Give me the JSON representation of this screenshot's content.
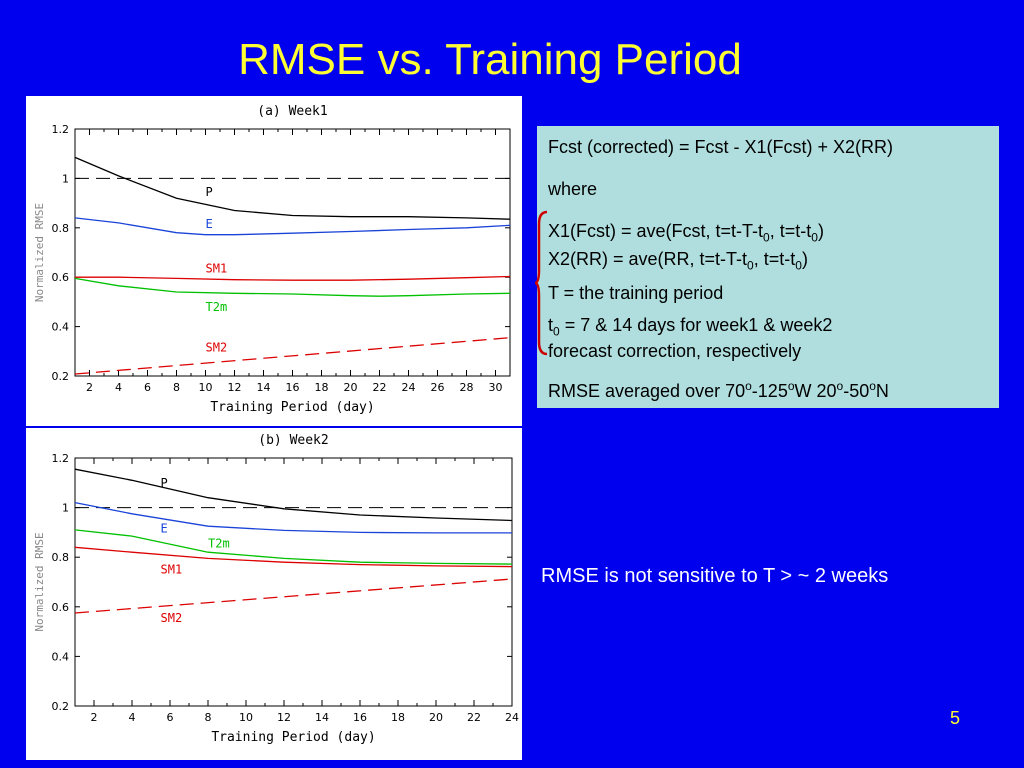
{
  "slide": {
    "title": "RMSE vs. Training Period",
    "page_number": "5",
    "note": "RMSE is not sensitive to T > ~ 2 weeks"
  },
  "infobox": {
    "line1": "Fcst (corrected) = Fcst - X1(Fcst) + X2(RR)",
    "line2": "where",
    "x1_a": "X1(Fcst) = ave(Fcst, t=t-T-t",
    "x1_sub1": "0",
    "x1_b": ", t=t-t",
    "x1_sub2": "0",
    "x1_c": ")",
    "x2_a": "X2(RR) = ave(RR, t=t-T-t",
    "x2_sub1": "0",
    "x2_b": ", t=t-t",
    "x2_sub2": "0",
    "x2_c": ")",
    "t_def": "T = the training period",
    "t0_a": "t",
    "t0_sub": "0",
    "t0_b": " = 7 & 14 days for week1 & week2",
    "t0_line2": "forecast correction, respectively",
    "rmse_a": "RMSE averaged over 70",
    "rmse_sup1": "o",
    "rmse_b": "-125",
    "rmse_sup2": "o",
    "rmse_c": "W 20",
    "rmse_sup3": "o",
    "rmse_d": "-50",
    "rmse_sup4": "o",
    "rmse_e": "N"
  },
  "colors": {
    "background": "#0000ee",
    "title": "#ffff33",
    "infobox_bg": "#b0dede",
    "P": "#000000",
    "E": "#1a44d8",
    "SM1": "#dd0000",
    "T2m": "#00c000",
    "SM2": "#dd0000"
  },
  "chart_data": [
    {
      "type": "line",
      "title": "(a) Week1",
      "xlabel": "Training Period (day)",
      "ylabel": "Normalized RMSE",
      "xlim": [
        1,
        31
      ],
      "ylim": [
        0.2,
        1.2
      ],
      "xticks": [
        2,
        4,
        6,
        8,
        10,
        12,
        14,
        16,
        18,
        20,
        22,
        24,
        26,
        28,
        30
      ],
      "yticks": [
        0.2,
        0.4,
        0.6,
        0.8,
        1.0,
        1.2
      ],
      "ytick_labels": [
        "0.2",
        "0.4",
        "0.6",
        "0.8",
        "1",
        "1.2"
      ],
      "reference_line": 1.0,
      "series": [
        {
          "name": "P",
          "color_key": "P",
          "dashed": false,
          "x": [
            1,
            4,
            8,
            12,
            16,
            20,
            24,
            28,
            31
          ],
          "y": [
            1.085,
            1.01,
            0.92,
            0.87,
            0.85,
            0.845,
            0.845,
            0.84,
            0.835
          ]
        },
        {
          "name": "E",
          "color_key": "E",
          "dashed": false,
          "x": [
            1,
            4,
            8,
            10,
            12,
            16,
            20,
            24,
            28,
            31
          ],
          "y": [
            0.84,
            0.82,
            0.78,
            0.772,
            0.772,
            0.778,
            0.785,
            0.793,
            0.8,
            0.81
          ]
        },
        {
          "name": "SM1",
          "color_key": "SM1",
          "dashed": false,
          "x": [
            1,
            4,
            8,
            12,
            16,
            20,
            24,
            28,
            31
          ],
          "y": [
            0.6,
            0.6,
            0.595,
            0.59,
            0.588,
            0.588,
            0.592,
            0.598,
            0.603
          ]
        },
        {
          "name": "T2m",
          "color_key": "T2m",
          "dashed": false,
          "x": [
            1,
            4,
            8,
            12,
            16,
            20,
            22,
            24,
            28,
            31
          ],
          "y": [
            0.595,
            0.565,
            0.54,
            0.535,
            0.532,
            0.525,
            0.523,
            0.525,
            0.532,
            0.535
          ]
        },
        {
          "name": "SM2",
          "color_key": "SM2",
          "dashed": true,
          "x": [
            1,
            31
          ],
          "y": [
            0.208,
            0.355
          ]
        }
      ],
      "series_labels": [
        {
          "text": "P",
          "color_key": "P",
          "x": 10,
          "y": 0.945
        },
        {
          "text": "E",
          "color_key": "E",
          "x": 10,
          "y": 0.815
        },
        {
          "text": "SM1",
          "color_key": "SM1",
          "x": 10,
          "y": 0.635
        },
        {
          "text": "T2m",
          "color_key": "T2m",
          "x": 10,
          "y": 0.48
        },
        {
          "text": "SM2",
          "color_key": "SM2",
          "x": 10,
          "y": 0.315
        }
      ]
    },
    {
      "type": "line",
      "title": "(b) Week2",
      "xlabel": "Training Period (day)",
      "ylabel": "Normalized RMSE",
      "xlim": [
        1,
        24
      ],
      "ylim": [
        0.2,
        1.2
      ],
      "xticks": [
        2,
        4,
        6,
        8,
        10,
        12,
        14,
        16,
        18,
        20,
        22,
        24
      ],
      "yticks": [
        0.2,
        0.4,
        0.6,
        0.8,
        1.0,
        1.2
      ],
      "ytick_labels": [
        "0.2",
        "0.4",
        "0.6",
        "0.8",
        "1",
        "1.2"
      ],
      "reference_line": 1.0,
      "series": [
        {
          "name": "P",
          "color_key": "P",
          "dashed": false,
          "x": [
            1,
            4,
            8,
            12,
            16,
            20,
            24
          ],
          "y": [
            1.155,
            1.11,
            1.04,
            0.995,
            0.97,
            0.958,
            0.948
          ]
        },
        {
          "name": "E",
          "color_key": "E",
          "dashed": false,
          "x": [
            1,
            4,
            8,
            12,
            16,
            20,
            24
          ],
          "y": [
            1.02,
            0.975,
            0.925,
            0.908,
            0.9,
            0.898,
            0.898
          ]
        },
        {
          "name": "T2m",
          "color_key": "T2m",
          "dashed": false,
          "x": [
            1,
            4,
            8,
            12,
            16,
            20,
            24
          ],
          "y": [
            0.91,
            0.885,
            0.82,
            0.795,
            0.78,
            0.775,
            0.772
          ]
        },
        {
          "name": "SM1",
          "color_key": "SM1",
          "dashed": false,
          "x": [
            1,
            4,
            8,
            12,
            16,
            20,
            24
          ],
          "y": [
            0.84,
            0.82,
            0.795,
            0.78,
            0.77,
            0.765,
            0.762
          ]
        },
        {
          "name": "SM2",
          "color_key": "SM2",
          "dashed": true,
          "x": [
            1,
            24
          ],
          "y": [
            0.575,
            0.712
          ]
        }
      ],
      "series_labels": [
        {
          "text": "P",
          "color_key": "P",
          "x": 5.5,
          "y": 1.1
        },
        {
          "text": "E",
          "color_key": "E",
          "x": 5.5,
          "y": 0.915
        },
        {
          "text": "T2m",
          "color_key": "T2m",
          "x": 8,
          "y": 0.855
        },
        {
          "text": "SM1",
          "color_key": "SM1",
          "x": 5.5,
          "y": 0.75
        },
        {
          "text": "SM2",
          "color_key": "SM2",
          "x": 5.5,
          "y": 0.555
        }
      ]
    }
  ]
}
